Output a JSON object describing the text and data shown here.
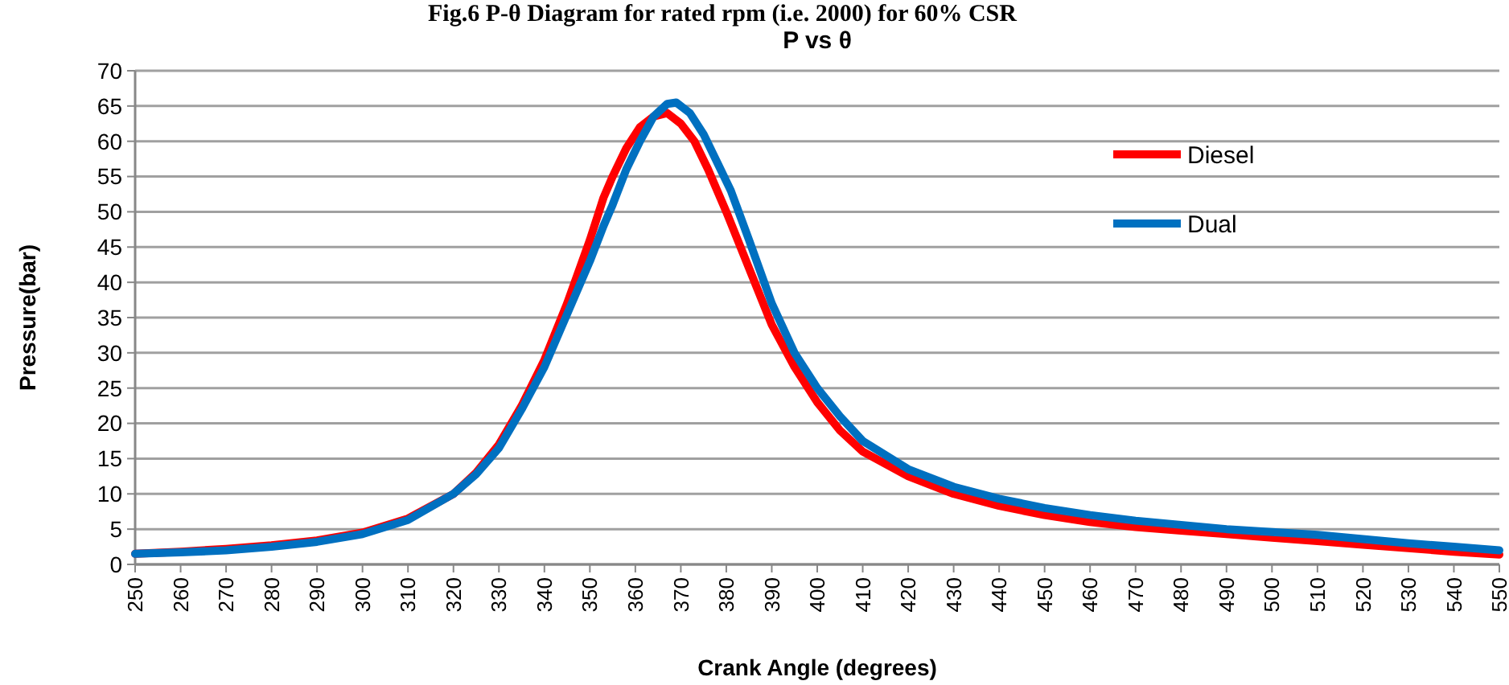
{
  "chart_data": {
    "type": "line",
    "title": "Fig.6 P-θ Diagram for rated rpm (i.e. 2000) for 60% CSR",
    "subtitle": "P vs θ",
    "xlabel": "Crank Angle (degrees)",
    "ylabel": "Pressure(bar)",
    "xlim": [
      250,
      550
    ],
    "xticks": [
      250,
      260,
      270,
      280,
      290,
      300,
      310,
      320,
      330,
      340,
      350,
      360,
      370,
      380,
      390,
      400,
      410,
      420,
      430,
      440,
      450,
      460,
      470,
      480,
      490,
      500,
      510,
      520,
      530,
      540,
      550
    ],
    "ylim": [
      0,
      70
    ],
    "yticks": [
      0,
      5,
      10,
      15,
      20,
      25,
      30,
      35,
      40,
      45,
      50,
      55,
      60,
      65,
      70
    ],
    "grid": "y",
    "legend": "top right",
    "marker": "none",
    "line_style": "solid",
    "series": [
      {
        "name": "Diesel",
        "color": "#ff0000",
        "x": [
          250,
          260,
          270,
          280,
          290,
          300,
          310,
          320,
          325,
          330,
          335,
          340,
          345,
          350,
          353,
          355,
          358,
          361,
          364,
          367,
          370,
          373,
          376,
          380,
          385,
          390,
          395,
          400,
          405,
          410,
          420,
          430,
          440,
          450,
          460,
          470,
          480,
          490,
          500,
          510,
          520,
          530,
          540,
          550
        ],
        "values": [
          1.5,
          1.8,
          2.2,
          2.7,
          3.4,
          4.5,
          6.5,
          10,
          13,
          17,
          22.5,
          29,
          37,
          46,
          52,
          55,
          59,
          62,
          63.5,
          64,
          62.5,
          60,
          56,
          50,
          42,
          34,
          28,
          23,
          19,
          16,
          12.5,
          10,
          8.3,
          7,
          6,
          5.3,
          4.8,
          4.3,
          3.8,
          3.3,
          2.8,
          2.3,
          1.8,
          1.4
        ]
      },
      {
        "name": "Dual",
        "color": "#0070c0",
        "x": [
          250,
          260,
          270,
          280,
          290,
          300,
          310,
          320,
          325,
          330,
          335,
          340,
          345,
          350,
          353,
          355,
          358,
          361,
          364,
          367,
          369,
          372,
          375,
          378,
          381,
          385,
          390,
          395,
          400,
          405,
          410,
          420,
          430,
          440,
          450,
          460,
          470,
          480,
          490,
          500,
          510,
          520,
          530,
          540,
          550
        ],
        "values": [
          1.5,
          1.7,
          2,
          2.5,
          3.2,
          4.3,
          6.3,
          10,
          12.8,
          16.5,
          22,
          28,
          35.5,
          43,
          48,
          51,
          56,
          60,
          63.5,
          65.3,
          65.5,
          64,
          61,
          57,
          53,
          46,
          37,
          30,
          25,
          21,
          17.5,
          13.5,
          11,
          9.3,
          8,
          7,
          6.2,
          5.6,
          5,
          4.6,
          4.2,
          3.6,
          3,
          2.5,
          2
        ]
      }
    ]
  }
}
